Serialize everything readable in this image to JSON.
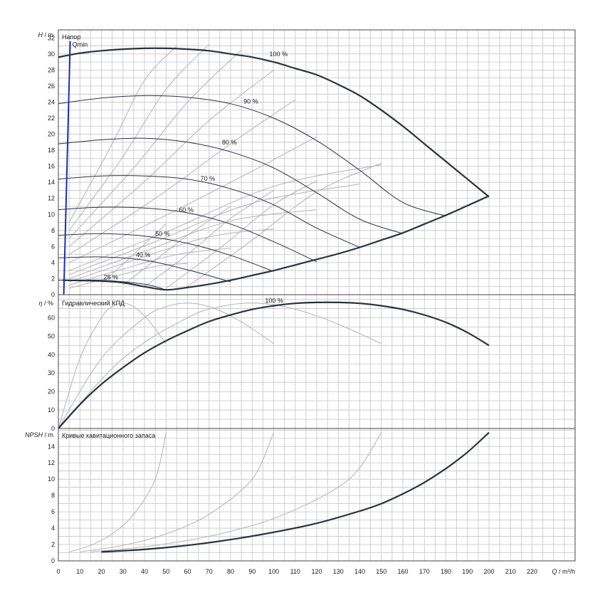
{
  "chart_data": [
    {
      "type": "line",
      "title": "Напор",
      "ylabel_symbol": "H",
      "ylabel_unit": " / m",
      "xlim": [
        0,
        240
      ],
      "ylim": [
        0,
        33
      ],
      "y_ticks": [
        0,
        2,
        4,
        6,
        8,
        10,
        12,
        14,
        16,
        18,
        20,
        22,
        24,
        26,
        28,
        30,
        32
      ],
      "grid": true,
      "qmin_label": "Qmin",
      "qmin_line": {
        "x": [
          2.5,
          5.5
        ],
        "y": [
          0,
          31.6
        ]
      },
      "speed_curves": [
        {
          "label": "100 %",
          "label_at": [
            98,
            29.7
          ],
          "x": [
            0,
            10,
            20,
            30,
            40,
            50,
            60,
            70,
            80,
            90,
            100,
            110,
            120,
            130,
            140,
            150,
            160,
            170,
            180,
            190,
            200
          ],
          "y": [
            29.6,
            30.1,
            30.4,
            30.6,
            30.7,
            30.7,
            30.6,
            30.4,
            30.0,
            29.6,
            29.0,
            28.2,
            27.4,
            26.2,
            24.8,
            23.0,
            21.0,
            18.8,
            16.6,
            14.4,
            12.2
          ],
          "bold": true
        },
        {
          "label": "90 %",
          "label_at": [
            86,
            23.8
          ],
          "x": [
            0,
            20,
            40,
            60,
            80,
            100,
            120,
            140,
            160,
            180
          ],
          "y": [
            23.8,
            24.5,
            24.8,
            24.6,
            23.8,
            22.0,
            19.2,
            15.5,
            11.5,
            9.8
          ]
        },
        {
          "label": "80 %",
          "label_at": [
            76,
            18.7
          ],
          "x": [
            0,
            20,
            40,
            60,
            80,
            100,
            120,
            140,
            160
          ],
          "y": [
            18.8,
            19.3,
            19.5,
            19.0,
            17.8,
            15.8,
            12.7,
            9.4,
            7.6
          ]
        },
        {
          "label": "70 %",
          "label_at": [
            66,
            14.2
          ],
          "x": [
            0,
            20,
            40,
            60,
            80,
            100,
            120,
            140
          ],
          "y": [
            14.4,
            14.8,
            14.8,
            14.4,
            13.2,
            11.2,
            8.3,
            5.9
          ]
        },
        {
          "label": "60 %",
          "label_at": [
            56,
            10.3
          ],
          "x": [
            0,
            20,
            40,
            60,
            80,
            100,
            120
          ],
          "y": [
            10.6,
            10.9,
            10.8,
            10.2,
            8.8,
            6.6,
            4.1
          ]
        },
        {
          "label": "50 %",
          "label_at": [
            45,
            7.3
          ],
          "x": [
            0,
            20,
            40,
            60,
            80,
            100
          ],
          "y": [
            7.4,
            7.6,
            7.3,
            6.4,
            4.9,
            2.9
          ]
        },
        {
          "label": "40 %",
          "label_at": [
            36,
            4.7
          ],
          "x": [
            0,
            20,
            40,
            60,
            80
          ],
          "y": [
            4.6,
            4.7,
            4.3,
            3.1,
            1.6
          ]
        },
        {
          "label": "25 %",
          "label_at": [
            21,
            1.9
          ],
          "x": [
            0,
            20,
            40,
            50
          ],
          "y": [
            1.8,
            1.8,
            1.3,
            0.6
          ]
        }
      ],
      "envelope": {
        "x": [
          2,
          20,
          30,
          40,
          50,
          60,
          70,
          80,
          90,
          100,
          110,
          120,
          130,
          140,
          150,
          160,
          170,
          180,
          190,
          200
        ],
        "y": [
          1.8,
          1.7,
          1.5,
          1.0,
          0.6,
          0.9,
          1.3,
          1.8,
          2.4,
          3.0,
          3.7,
          4.4,
          5.1,
          5.9,
          6.8,
          7.7,
          8.8,
          9.9,
          11.1,
          12.3
        ]
      },
      "efficiency_isolines": [
        {
          "x": [
            5,
            25,
            45,
            60
          ],
          "y": [
            0.8,
            2.2,
            3.5,
            3.9
          ]
        },
        {
          "x": [
            5,
            30,
            55,
            80
          ],
          "y": [
            1.2,
            3.2,
            5.0,
            5.8
          ]
        },
        {
          "x": [
            5,
            35,
            70,
            100
          ],
          "y": [
            1.6,
            4.3,
            7.2,
            8.2
          ]
        },
        {
          "x": [
            5,
            40,
            80,
            120
          ],
          "y": [
            2.0,
            5.4,
            9.2,
            10.6
          ]
        },
        {
          "x": [
            5,
            45,
            90,
            140
          ],
          "y": [
            2.5,
            6.6,
            11.4,
            13.8
          ]
        },
        {
          "x": [
            5,
            50,
            100,
            150
          ],
          "y": [
            3.0,
            7.8,
            13.5,
            16.2
          ]
        },
        {
          "x": [
            5,
            50,
            90,
            120
          ],
          "y": [
            4.0,
            9.9,
            15.4,
            19.7
          ]
        },
        {
          "x": [
            5,
            45,
            80,
            110
          ],
          "y": [
            5.0,
            12.0,
            18.8,
            24.3
          ]
        },
        {
          "x": [
            5,
            40,
            70,
            100
          ],
          "y": [
            6.0,
            14.1,
            21.7,
            28.0
          ]
        },
        {
          "x": [
            5,
            35,
            60,
            85
          ],
          "y": [
            7.0,
            15.8,
            24.0,
            30.5
          ]
        },
        {
          "x": [
            5,
            30,
            50,
            70
          ],
          "y": [
            8.0,
            17.2,
            25.6,
            31.2
          ]
        },
        {
          "x": [
            5,
            25,
            40,
            55
          ],
          "y": [
            9.0,
            18.8,
            26.7,
            31.0
          ]
        },
        {
          "x": [
            20,
            30,
            40,
            50
          ],
          "y": [
            1.4,
            3.8,
            6.3,
            8.8
          ]
        },
        {
          "x": [
            30,
            45,
            60,
            80
          ],
          "y": [
            1.2,
            4.3,
            7.4,
            11.0
          ]
        },
        {
          "x": [
            40,
            60,
            80,
            100
          ],
          "y": [
            1.0,
            5.0,
            9.5,
            13.0
          ]
        },
        {
          "x": [
            50,
            75,
            100,
            120
          ],
          "y": [
            0.8,
            5.8,
            11.2,
            14.2
          ]
        },
        {
          "x": [
            60,
            90,
            120,
            150
          ],
          "y": [
            1.0,
            6.8,
            12.8,
            16.4
          ]
        }
      ]
    },
    {
      "type": "line",
      "title": "Гидравлический КПД",
      "ylabel_symbol": "η",
      "ylabel_unit": " / %",
      "xlim": [
        0,
        240
      ],
      "ylim": [
        0,
        72.5
      ],
      "y_ticks": [
        0,
        10,
        20,
        30,
        40,
        50,
        60
      ],
      "grid": true,
      "label_100": "100 %",
      "label_100_at": [
        96,
        68
      ],
      "main_curve": {
        "x": [
          0,
          10,
          20,
          30,
          40,
          50,
          60,
          70,
          80,
          90,
          100,
          110,
          120,
          130,
          140,
          150,
          160,
          170,
          180,
          190,
          200
        ],
        "y": [
          0,
          13,
          24,
          33,
          41,
          47.5,
          53,
          58,
          61.5,
          64.5,
          66.5,
          67.8,
          68.3,
          68.3,
          67.8,
          66.5,
          64.5,
          61.5,
          57.5,
          52,
          45
        ]
      },
      "family_curves": [
        {
          "x": [
            0,
            10,
            20,
            25,
            30,
            35,
            40,
            45,
            50
          ],
          "y": [
            0,
            38,
            60,
            66,
            68,
            66,
            61,
            54,
            46
          ]
        },
        {
          "x": [
            0,
            20,
            40,
            50,
            60,
            70,
            80,
            90,
            100
          ],
          "y": [
            0,
            38,
            60,
            66,
            68,
            66,
            61,
            54,
            46
          ]
        },
        {
          "x": [
            0,
            30,
            60,
            75,
            90,
            105,
            120,
            135,
            150
          ],
          "y": [
            0,
            38,
            60,
            66,
            68,
            66,
            61,
            54,
            46
          ]
        }
      ]
    },
    {
      "type": "line",
      "title": "Кривые кавитационного запаса",
      "ylabel_symbol": "NPSH",
      "ylabel_unit": " / m",
      "xlim": [
        0,
        240
      ],
      "ylim": [
        0,
        16.2
      ],
      "y_ticks": [
        0,
        2,
        4,
        6,
        8,
        10,
        12,
        14
      ],
      "grid": true,
      "main_curve": {
        "x": [
          20,
          40,
          60,
          80,
          100,
          120,
          140,
          150,
          160,
          170,
          180,
          190,
          200
        ],
        "y": [
          1.1,
          1.4,
          1.9,
          2.6,
          3.5,
          4.6,
          6.1,
          7.0,
          8.2,
          9.6,
          11.3,
          13.3,
          15.7
        ]
      },
      "family_curves": [
        {
          "x": [
            5,
            15,
            25,
            35,
            45,
            50
          ],
          "y": [
            1.1,
            1.9,
            3.3,
            5.7,
            10.0,
            15.7
          ]
        },
        {
          "x": [
            10,
            30,
            50,
            70,
            90,
            100
          ],
          "y": [
            1.1,
            1.9,
            3.3,
            5.7,
            10.0,
            15.7
          ]
        },
        {
          "x": [
            15,
            45,
            75,
            105,
            135,
            150
          ],
          "y": [
            1.1,
            1.9,
            3.3,
            5.7,
            10.0,
            15.7
          ]
        }
      ]
    }
  ],
  "x_axis": {
    "ticks": [
      0,
      10,
      20,
      30,
      40,
      50,
      60,
      70,
      80,
      90,
      100,
      110,
      120,
      130,
      140,
      150,
      160,
      170,
      180,
      190,
      200,
      210,
      220
    ],
    "label_symbol": "Q",
    "label_unit": " / m³/h"
  },
  "colors": {
    "qmin": "#1c2fb8",
    "main": "#2b3140",
    "family": "#b3b3b3",
    "grid": "#c4c4c4"
  }
}
